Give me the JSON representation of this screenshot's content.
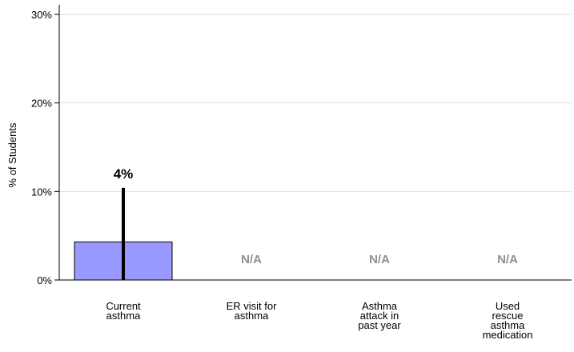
{
  "chart_data": {
    "type": "bar",
    "categories": [
      [
        "Current",
        "asthma"
      ],
      [
        "ER visit for",
        "asthma"
      ],
      [
        "Asthma",
        "attack in",
        "past year"
      ],
      [
        "Used",
        "rescue",
        "asthma",
        "medication"
      ]
    ],
    "values": [
      4.3,
      null,
      null,
      null
    ],
    "error_upper": [
      10.4,
      null,
      null,
      null
    ],
    "value_labels": [
      "4%",
      "N/A",
      "N/A",
      "N/A"
    ],
    "ylabel": "% of Students",
    "ylim": [
      0,
      30
    ],
    "yticks": [
      0,
      10,
      20,
      30
    ],
    "ytick_labels": [
      "0%",
      "10%",
      "20%",
      "30%"
    ],
    "grid": true,
    "colors": {
      "bar": "#9999ff",
      "bar_stroke": "#000000",
      "grid": "#dddddd",
      "na_text": "#8f8f8f"
    }
  }
}
